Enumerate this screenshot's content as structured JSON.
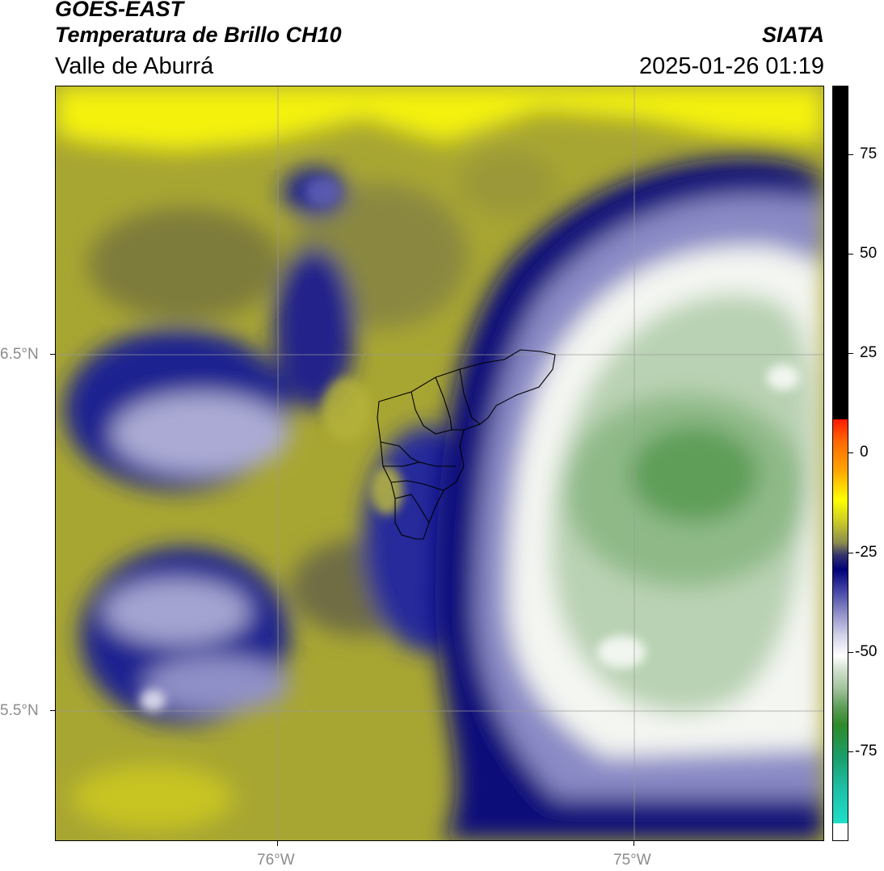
{
  "header": {
    "title_line1": "GOES-EAST",
    "title_line2": "Temperatura de Brillo CH10",
    "title_line3": "Valle de Aburrá",
    "source": "SIATA",
    "timestamp": "2025-01-26 01:19"
  },
  "map": {
    "lat_labels": [
      "6.5°N",
      "5.5°N"
    ],
    "lon_labels": [
      "76°W",
      "75°W"
    ],
    "gridlines": true
  },
  "colorbar": {
    "tick_labels": [
      "75",
      "50",
      "25",
      "0",
      "-25",
      "-50",
      "-75"
    ],
    "colors": {
      "black": "#000000",
      "red": "#ff1a00",
      "orange": "#ff8c00",
      "yellow": "#ffff00",
      "olive": "#8a8a2e",
      "navy": "#00007a",
      "lavender": "#b7b7d8",
      "white": "#ffffff",
      "green": "#2e8a28",
      "teal": "#1ee0c8"
    }
  }
}
